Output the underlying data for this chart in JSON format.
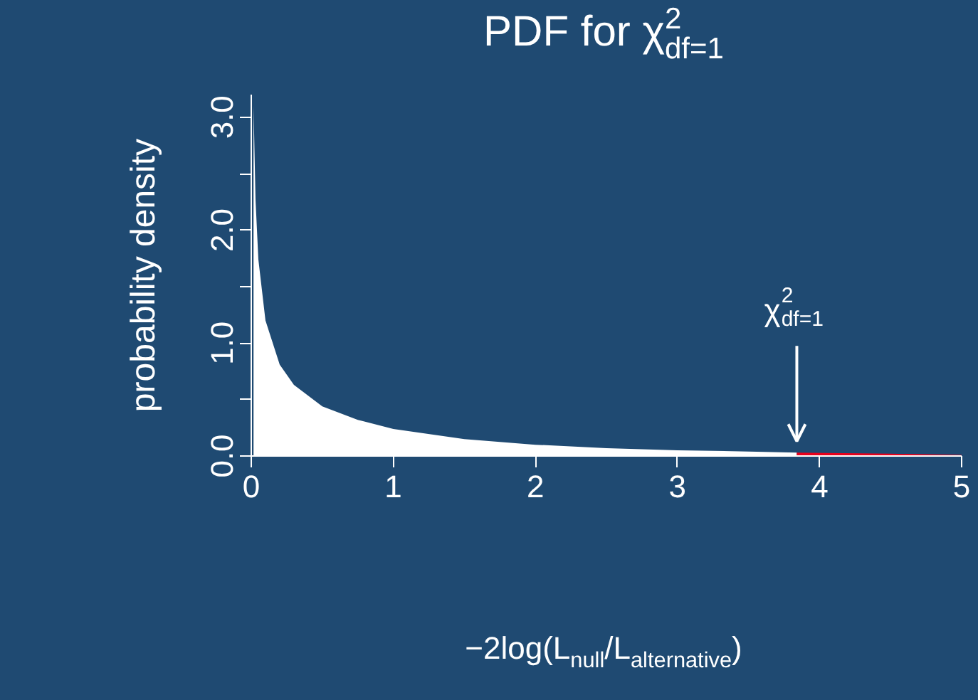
{
  "chart_data": {
    "type": "area",
    "title": "PDF for χ$^{2}$$_{df=1}$",
    "xlabel": "−2log(L$_{null}$/L$_{alternative}$)",
    "ylabel": "probability density",
    "series": [
      {
        "color": "#ffffff",
        "x": [
          0.016,
          0.03,
          0.05,
          0.1,
          0.2,
          0.3,
          0.5,
          0.75,
          1,
          1.5,
          2,
          2.5,
          3,
          3.5,
          3.84
        ],
        "values": [
          3.1,
          2.27,
          1.74,
          1.2,
          0.81,
          0.63,
          0.44,
          0.32,
          0.24,
          0.15,
          0.1,
          0.07,
          0.05,
          0.04,
          0.03
        ]
      },
      {
        "color": "#e8001c",
        "x": [
          3.84,
          4.5,
          5
        ],
        "values": [
          0.03,
          0.02,
          0.01
        ]
      }
    ],
    "annotations": [
      {
        "text": "χ$^{2}$$_{df=1}$",
        "x": 3.84,
        "y": 0.03
      }
    ],
    "xlim": [
      0,
      5
    ],
    "ylim": [
      0,
      3.2
    ],
    "xticks": [
      0,
      1,
      2,
      3,
      4,
      5
    ],
    "yticks": [
      {
        "value": 0,
        "label": "0.0"
      },
      {
        "value": 0.5,
        "label": null
      },
      {
        "value": 1,
        "label": "1.0"
      },
      {
        "value": 1.5,
        "label": null
      },
      {
        "value": 2,
        "label": "2.0"
      },
      {
        "value": 2.5,
        "label": null
      },
      {
        "value": 3,
        "label": "3.0"
      }
    ],
    "grid": false
  }
}
